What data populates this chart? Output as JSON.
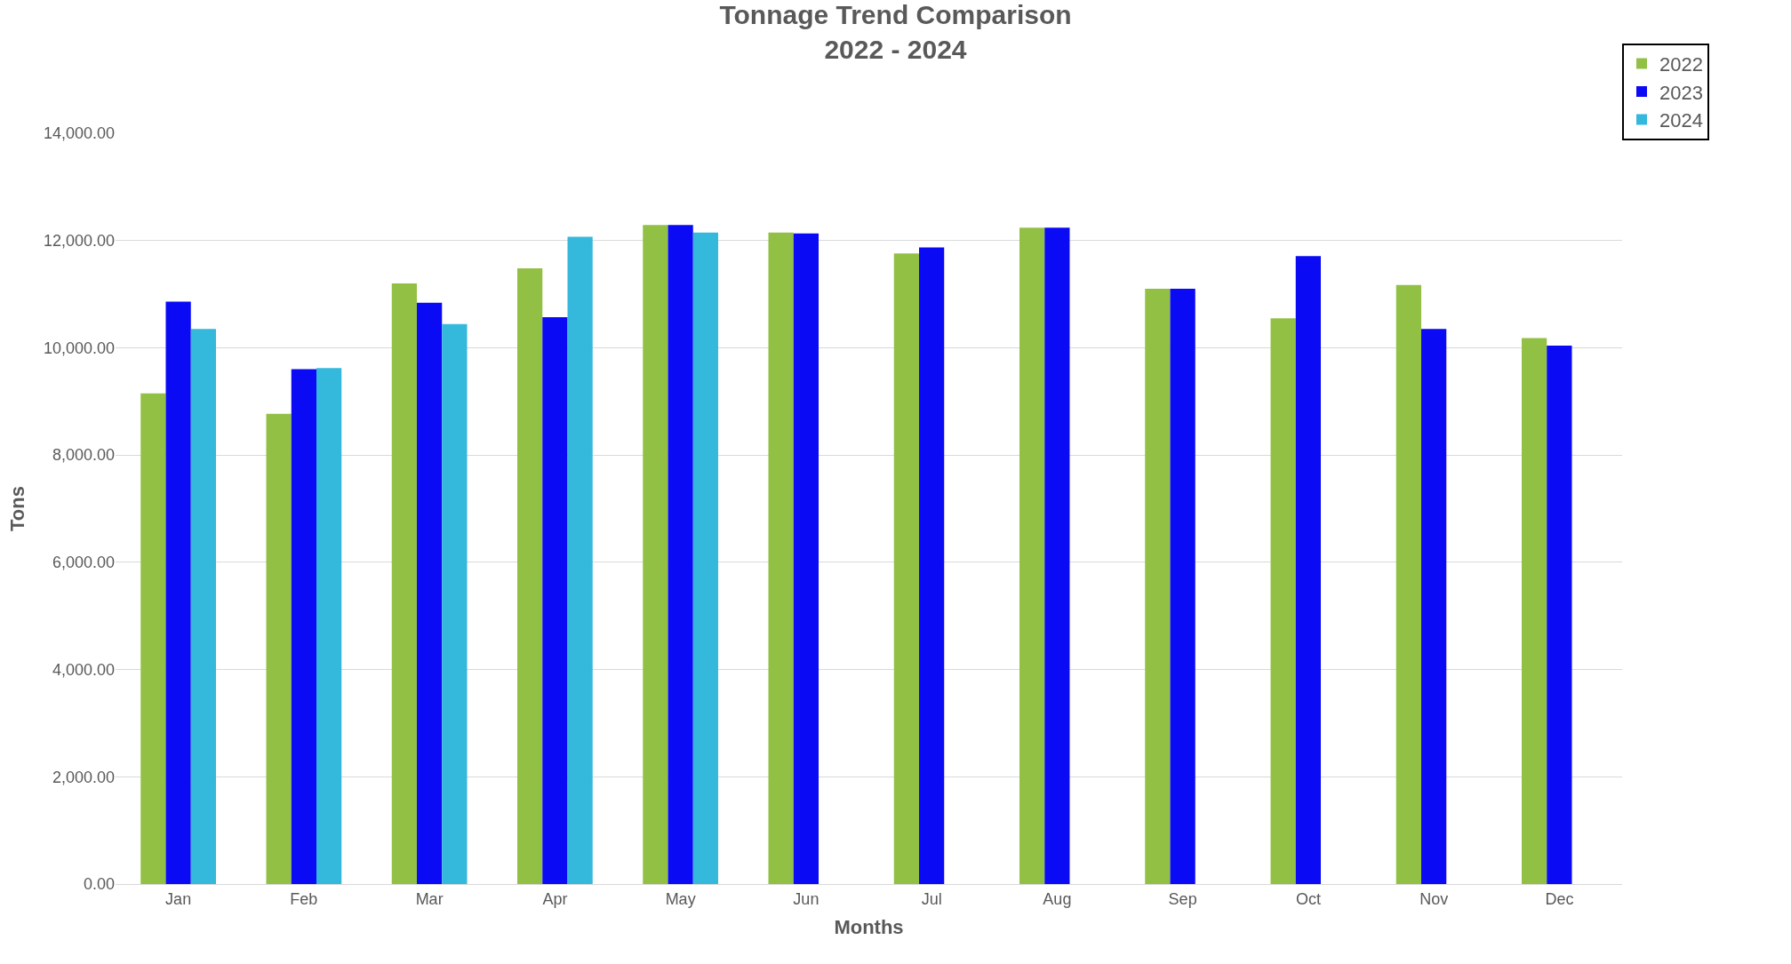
{
  "chart_data": {
    "type": "bar",
    "title": "Tonnage Trend Comparison\n2022 - 2024",
    "xlabel": "Months",
    "ylabel": "Tons",
    "categories": [
      "Jan",
      "Feb",
      "Mar",
      "Apr",
      "May",
      "Jun",
      "Jul",
      "Aug",
      "Sep",
      "Oct",
      "Nov",
      "Dec"
    ],
    "series": [
      {
        "name": "2022",
        "color": "#92c045",
        "values": [
          9150,
          8770,
          11200,
          11480,
          12290,
          12150,
          11760,
          12240,
          11100,
          10550,
          11170,
          10180
        ]
      },
      {
        "name": "2023",
        "color": "#0a0af5",
        "values": [
          10860,
          9600,
          10840,
          10570,
          12290,
          12130,
          11870,
          12240,
          11100,
          11710,
          10350,
          10040
        ]
      },
      {
        "name": "2024",
        "color": "#34b8dc",
        "values": [
          10350,
          9620,
          10440,
          12070,
          12150,
          null,
          null,
          null,
          null,
          null,
          null,
          null
        ]
      }
    ],
    "ylim": [
      0,
      14000
    ],
    "yticks": [
      {
        "value": 0,
        "label": "0.00"
      },
      {
        "value": 2000,
        "label": "2,000.00"
      },
      {
        "value": 4000,
        "label": "4,000.00"
      },
      {
        "value": 6000,
        "label": "6,000.00"
      },
      {
        "value": 8000,
        "label": "8,000.00"
      },
      {
        "value": 10000,
        "label": "10,000.00"
      },
      {
        "value": 12000,
        "label": "12,000.00"
      },
      {
        "value": 14000,
        "label": "14,000.00"
      }
    ],
    "grid": "y",
    "legend": "top right"
  }
}
